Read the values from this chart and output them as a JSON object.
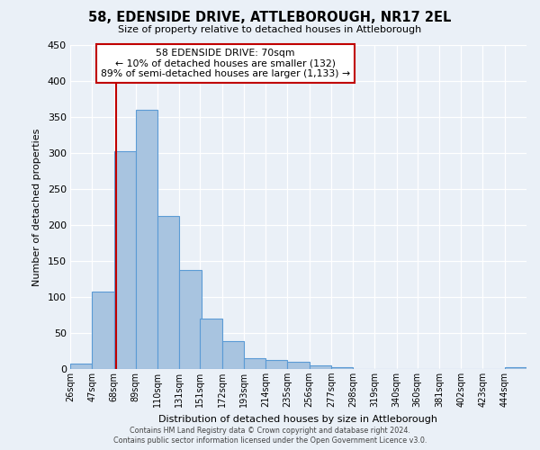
{
  "title": "58, EDENSIDE DRIVE, ATTLEBOROUGH, NR17 2EL",
  "subtitle": "Size of property relative to detached houses in Attleborough",
  "xlabel": "Distribution of detached houses by size in Attleborough",
  "ylabel": "Number of detached properties",
  "bin_labels": [
    "26sqm",
    "47sqm",
    "68sqm",
    "89sqm",
    "110sqm",
    "131sqm",
    "151sqm",
    "172sqm",
    "193sqm",
    "214sqm",
    "235sqm",
    "256sqm",
    "277sqm",
    "298sqm",
    "319sqm",
    "340sqm",
    "360sqm",
    "381sqm",
    "402sqm",
    "423sqm",
    "444sqm"
  ],
  "bar_values": [
    8,
    108,
    302,
    360,
    213,
    137,
    70,
    39,
    15,
    12,
    10,
    5,
    3,
    0,
    0,
    0,
    0,
    0,
    0,
    0,
    3
  ],
  "bar_color": "#a8c4e0",
  "bar_edge_color": "#5b9bd5",
  "ylim": [
    0,
    450
  ],
  "yticks": [
    0,
    50,
    100,
    150,
    200,
    250,
    300,
    350,
    400,
    450
  ],
  "vline_x": 70,
  "vline_color": "#c00000",
  "annotation_title": "58 EDENSIDE DRIVE: 70sqm",
  "annotation_line1": "← 10% of detached houses are smaller (132)",
  "annotation_line2": "89% of semi-detached houses are larger (1,133) →",
  "annotation_box_color": "#c00000",
  "footnote1": "Contains HM Land Registry data © Crown copyright and database right 2024.",
  "footnote2": "Contains public sector information licensed under the Open Government Licence v3.0.",
  "bg_color": "#eaf0f7",
  "plot_bg_color": "#eaf0f7"
}
